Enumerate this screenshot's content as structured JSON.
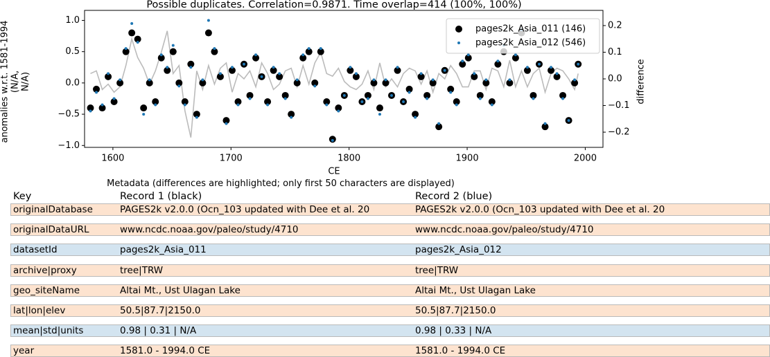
{
  "chart_data": {
    "type": "scatter",
    "title": "Possible duplicates. Correlation=0.9871. Time overlap=414 (100%, 100%)",
    "xlabel": "CE",
    "ylabel_lines": [
      "anomalies w.r.t. 1581-1994",
      "(N/A,",
      "N/A)"
    ],
    "y2label": "difference",
    "xlim": [
      1576,
      2015
    ],
    "ylim": [
      -1.03,
      1.16
    ],
    "y2lim": [
      -0.257,
      0.257
    ],
    "xticks": [
      1600,
      1700,
      1800,
      1900,
      2000
    ],
    "yticks": [
      {
        "value": -1,
        "label": "−1.0"
      },
      {
        "value": -0.5,
        "label": "−0.5"
      },
      {
        "value": 0,
        "label": "0.0"
      },
      {
        "value": 0.5,
        "label": "0.5"
      },
      {
        "value": 1,
        "label": "1.0"
      }
    ],
    "y2ticks": [
      {
        "value": -0.2,
        "label": "−0.2"
      },
      {
        "value": -0.1,
        "label": "−0.1"
      },
      {
        "value": 0,
        "label": "0.0"
      },
      {
        "value": 0.1,
        "label": "0.1"
      },
      {
        "value": 0.2,
        "label": "0.2"
      }
    ],
    "legend": "upper right",
    "x": [
      1581,
      1586,
      1591,
      1596,
      1601,
      1606,
      1611,
      1616,
      1621,
      1626,
      1631,
      1636,
      1641,
      1646,
      1651,
      1656,
      1661,
      1666,
      1671,
      1676,
      1681,
      1686,
      1691,
      1696,
      1701,
      1706,
      1711,
      1716,
      1721,
      1726,
      1731,
      1736,
      1741,
      1746,
      1751,
      1756,
      1761,
      1766,
      1771,
      1776,
      1781,
      1786,
      1791,
      1796,
      1801,
      1806,
      1811,
      1816,
      1821,
      1826,
      1831,
      1836,
      1841,
      1846,
      1851,
      1856,
      1861,
      1866,
      1871,
      1876,
      1881,
      1886,
      1891,
      1896,
      1901,
      1906,
      1911,
      1916,
      1921,
      1926,
      1931,
      1936,
      1941,
      1946,
      1951,
      1956,
      1961,
      1966,
      1971,
      1976,
      1981,
      1986,
      1991,
      1994
    ],
    "series": [
      {
        "name": "difference",
        "type": "line",
        "axis": "y2",
        "color": "#bbbbbb",
        "in_legend": false,
        "values": [
          0.02,
          0.03,
          -0.04,
          -0.02,
          -0.05,
          -0.03,
          0.05,
          0.15,
          0.08,
          0.04,
          -0.02,
          0.03,
          0.1,
          0.18,
          0.02,
          0.05,
          -0.12,
          -0.22,
          0.03,
          -0.04,
          0.05,
          -0.02,
          0.04,
          0.06,
          -0.05,
          0.02,
          0.0,
          0.03,
          -0.03,
          0.06,
          0.02,
          -0.04,
          -0.02,
          0.03,
          0.04,
          -0.03,
          0.05,
          -0.02,
          0.06,
          0.1,
          0.02,
          0.01,
          0.04,
          -0.01,
          -0.03,
          -0.04,
          -0.02,
          0.03,
          -0.04,
          0.06,
          -0.03,
          0.0,
          -0.03,
          0.02,
          0.04,
          0.03,
          -0.02,
          0.03,
          -0.05,
          0.02,
          0.0,
          0.05,
          0.02,
          -0.03,
          -0.03,
          0.03,
          0.03,
          -0.04,
          0.04,
          0.03,
          -0.03,
          0.07,
          -0.03,
          0.03,
          -0.03,
          0.02,
          0.04,
          -0.05,
          0.02,
          0.04,
          0.03,
          0.0,
          -0.04,
          0.02
        ]
      },
      {
        "name": "pages2k_Asia_011 (146)",
        "type": "scatter",
        "color": "#000000",
        "size": 5,
        "in_legend": true,
        "values": [
          -0.4,
          -0.1,
          -0.4,
          0.1,
          -0.3,
          0.0,
          0.5,
          0.8,
          0.7,
          -0.4,
          0.0,
          -0.3,
          0.4,
          0.2,
          0.5,
          0.0,
          -0.3,
          0.3,
          -0.5,
          0.0,
          0.8,
          0.5,
          0.1,
          -0.6,
          0.2,
          -0.3,
          0.3,
          -0.2,
          0.4,
          0.1,
          -0.3,
          0.2,
          0.1,
          -0.2,
          -0.5,
          0.0,
          0.4,
          0.5,
          0.0,
          0.5,
          -0.3,
          -0.9,
          -0.4,
          -0.2,
          0.2,
          0.1,
          -0.3,
          -0.2,
          0.0,
          -0.4,
          0.0,
          -0.2,
          0.2,
          -0.3,
          -0.1,
          -0.5,
          0.1,
          -0.2,
          0.0,
          -0.7,
          0.2,
          -0.1,
          -0.3,
          0.3,
          0.4,
          0.1,
          -0.2,
          0.0,
          -0.3,
          0.3,
          0.5,
          0.0,
          0.4,
          0.8,
          0.2,
          -0.2,
          0.3,
          -0.7,
          0.2,
          0.1,
          -0.2,
          -0.6,
          0.0,
          0.3
        ]
      },
      {
        "name": "pages2k_Asia_012 (546)",
        "type": "scatter",
        "color": "#1f77b4",
        "size": 2,
        "in_legend": true,
        "values": [
          -0.45,
          -0.15,
          -0.35,
          0.15,
          -0.25,
          0.05,
          0.55,
          0.95,
          0.65,
          -0.5,
          0.05,
          -0.35,
          0.45,
          0.25,
          0.6,
          -0.05,
          -0.35,
          0.25,
          -0.55,
          0.05,
          1.0,
          0.55,
          0.15,
          -0.65,
          0.25,
          -0.35,
          0.3,
          -0.25,
          0.45,
          0.1,
          -0.35,
          0.25,
          0.15,
          -0.25,
          -0.55,
          0.05,
          0.45,
          0.55,
          -0.05,
          0.55,
          -0.35,
          -0.92,
          -0.45,
          -0.2,
          0.25,
          0.15,
          -0.3,
          -0.25,
          0.05,
          -0.5,
          0.05,
          -0.2,
          0.25,
          -0.3,
          -0.15,
          -0.55,
          0.15,
          -0.25,
          0.05,
          -0.65,
          0.2,
          -0.15,
          -0.35,
          0.35,
          0.45,
          0.15,
          -0.25,
          0.05,
          -0.35,
          0.35,
          0.6,
          0.05,
          0.45,
          0.85,
          0.25,
          -0.25,
          0.3,
          -0.65,
          0.25,
          0.15,
          -0.25,
          -0.6,
          0.05,
          0.3
        ]
      }
    ]
  },
  "table": {
    "caption": "Metadata (differences are highlighted; only first 50 characters are displayed)",
    "header": [
      "Key",
      "Record 1 (black)",
      "Record 2 (blue)"
    ],
    "rows": [
      {
        "color": "#fde3cf",
        "cells": [
          "originalDatabase",
          "PAGES2k v2.0.0 (Ocn_103 updated with Dee et al. 20",
          "PAGES2k v2.0.0 (Ocn_103 updated with Dee et al. 20"
        ]
      },
      {
        "color": "#fde3cf",
        "cells": [
          "originalDataURL",
          "www.ncdc.noaa.gov/paleo/study/4710",
          "www.ncdc.noaa.gov/paleo/study/4710"
        ]
      },
      {
        "color": "#d3e4f0",
        "cells": [
          "datasetId",
          "pages2k_Asia_011",
          "pages2k_Asia_012"
        ]
      },
      {
        "color": "#fde3cf",
        "cells": [
          "archive|proxy",
          "tree|TRW",
          "tree|TRW"
        ]
      },
      {
        "color": "#fde3cf",
        "cells": [
          "geo_siteName",
          "Altai Mt., Ust Ulagan Lake",
          "Altai Mt., Ust Ulagan Lake"
        ]
      },
      {
        "color": "#fde3cf",
        "cells": [
          "lat|lon|elev",
          "50.5|87.7|2150.0",
          "50.5|87.7|2150.0"
        ]
      },
      {
        "color": "#d3e4f0",
        "cells": [
          "mean|std|units",
          "0.98 | 0.31 | N/A",
          "0.98 | 0.33 | N/A"
        ]
      },
      {
        "color": "#fde3cf",
        "cells": [
          "year",
          "1581.0 - 1994.0 CE",
          "1581.0 - 1994.0 CE"
        ]
      }
    ]
  }
}
